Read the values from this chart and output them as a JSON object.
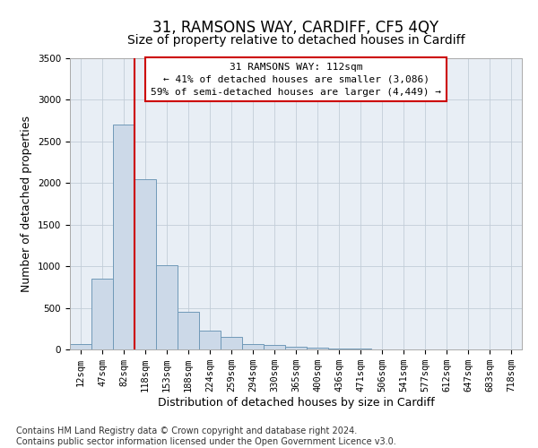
{
  "title": "31, RAMSONS WAY, CARDIFF, CF5 4QY",
  "subtitle": "Size of property relative to detached houses in Cardiff",
  "xlabel": "Distribution of detached houses by size in Cardiff",
  "ylabel": "Number of detached properties",
  "footnote": "Contains HM Land Registry data © Crown copyright and database right 2024.\nContains public sector information licensed under the Open Government Licence v3.0.",
  "bar_labels": [
    "12sqm",
    "47sqm",
    "82sqm",
    "118sqm",
    "153sqm",
    "188sqm",
    "224sqm",
    "259sqm",
    "294sqm",
    "330sqm",
    "365sqm",
    "400sqm",
    "436sqm",
    "471sqm",
    "506sqm",
    "541sqm",
    "577sqm",
    "612sqm",
    "647sqm",
    "683sqm",
    "718sqm"
  ],
  "bar_values": [
    60,
    850,
    2700,
    2050,
    1010,
    455,
    230,
    150,
    65,
    50,
    35,
    20,
    15,
    8,
    3,
    2,
    1,
    1,
    0,
    0,
    0
  ],
  "bar_color": "#ccd9e8",
  "bar_edgecolor": "#7099b8",
  "ylim_max": 3500,
  "yticks": [
    0,
    500,
    1000,
    1500,
    2000,
    2500,
    3000,
    3500
  ],
  "vline_position": 2.5,
  "vline_color": "#cc0000",
  "annotation_line1": "31 RAMSONS WAY: 112sqm",
  "annotation_line2": "← 41% of detached houses are smaller (3,086)",
  "annotation_line3": "59% of semi-detached houses are larger (4,449) →",
  "bg_color": "#e8eef5",
  "grid_color": "#c2cdd8",
  "title_fontsize": 12,
  "subtitle_fontsize": 10,
  "axis_label_fontsize": 9,
  "tick_fontsize": 7.5,
  "annotation_fontsize": 8,
  "footnote_fontsize": 7
}
